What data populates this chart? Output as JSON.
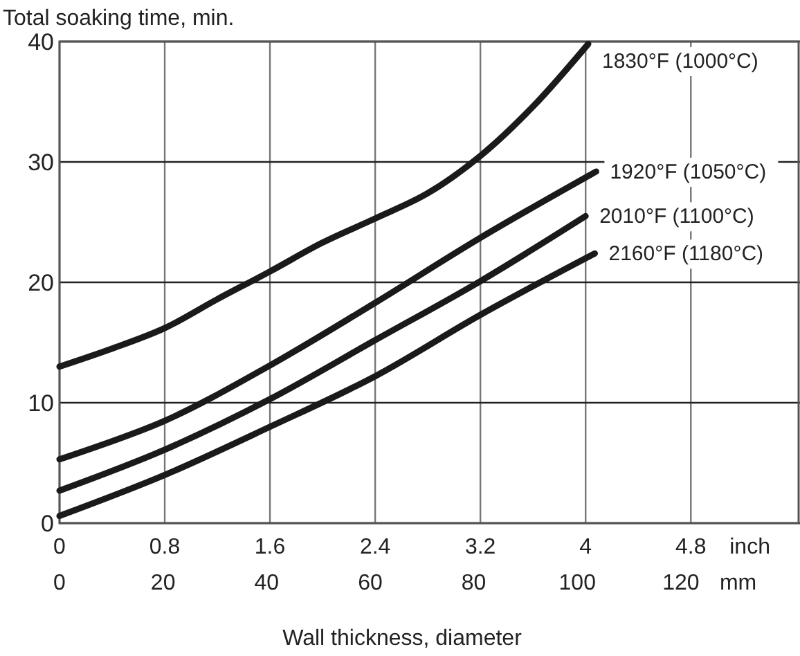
{
  "chart_data": {
    "type": "line",
    "ylabel": "Total soaking time, min.",
    "xlabel": "Wall thickness, diameter",
    "xlim": [
      0,
      5.63
    ],
    "xticks": [
      0,
      0.8,
      1.6,
      2.4,
      3.2,
      4,
      4.8
    ],
    "x2lim": [
      0,
      143
    ],
    "x2ticks": [
      0,
      20,
      40,
      60,
      80,
      100,
      120
    ],
    "ylim": [
      0,
      40
    ],
    "yticks": [
      0,
      10,
      20,
      30,
      40
    ],
    "grid": true,
    "marker": "none",
    "line_style": "solid",
    "annotations": [
      "inch",
      "mm"
    ],
    "series": [
      {
        "name": "1830°F (1000°C)",
        "color": "#1a1a1a",
        "x": [
          0,
          0.4,
          0.8,
          1.2,
          1.6,
          2.0,
          2.4,
          2.8,
          3.2,
          3.6,
          4.02
        ],
        "values": [
          13,
          14.5,
          16.2,
          18.6,
          20.9,
          23.3,
          25.3,
          27.4,
          30.5,
          34.6,
          39.8
        ]
      },
      {
        "name": "1920°F (1050°C)",
        "color": "#1a1a1a",
        "x": [
          0,
          0.8,
          1.6,
          2.4,
          3.2,
          4.08
        ],
        "values": [
          5.3,
          8.5,
          13.1,
          18.3,
          23.7,
          29.2
        ]
      },
      {
        "name": "2010°F (1100°C)",
        "color": "#1a1a1a",
        "x": [
          0,
          0.8,
          1.6,
          2.4,
          3.2,
          4.0
        ],
        "values": [
          2.7,
          6.1,
          10.3,
          15.2,
          20.1,
          25.5
        ]
      },
      {
        "name": "2160°F (1180°C)",
        "color": "#1a1a1a",
        "x": [
          0,
          0.8,
          1.6,
          2.4,
          3.2,
          4.07
        ],
        "values": [
          0.6,
          4.0,
          8.0,
          12.2,
          17.3,
          22.4
        ]
      }
    ]
  }
}
